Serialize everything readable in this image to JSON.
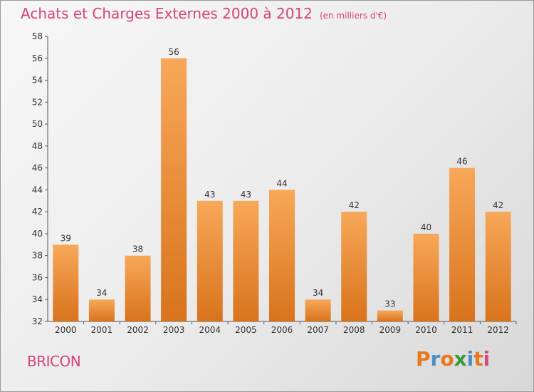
{
  "title": "Achats et Charges Externes 2000 à 2012",
  "unit": "(en milliers d'€)",
  "commune": "BRICON",
  "logo": {
    "letters": [
      "P",
      "r",
      "o",
      "x",
      "i",
      "t",
      "i"
    ],
    "colors": [
      "#e8781e",
      "#4a90c8",
      "#e8781e",
      "#3a9a3a",
      "#4a90c8",
      "#e8781e",
      "#d94a7a"
    ]
  },
  "colors": {
    "title": "#d6427b",
    "bar_light": "#f7a859",
    "bar_dark": "#d9731c"
  },
  "chart_data": {
    "type": "bar",
    "categories": [
      "2000",
      "2001",
      "2002",
      "2003",
      "2004",
      "2005",
      "2006",
      "2007",
      "2008",
      "2009",
      "2010",
      "2011",
      "2012"
    ],
    "values": [
      39,
      34,
      38,
      56,
      43,
      43,
      44,
      34,
      42,
      33,
      40,
      46,
      42
    ],
    "title": "Achats et Charges Externes 2000 à 2012",
    "ylim": [
      32,
      58
    ],
    "yticks": [
      32,
      34,
      36,
      38,
      40,
      42,
      44,
      46,
      48,
      50,
      52,
      54,
      56,
      58
    ],
    "grid": false
  }
}
